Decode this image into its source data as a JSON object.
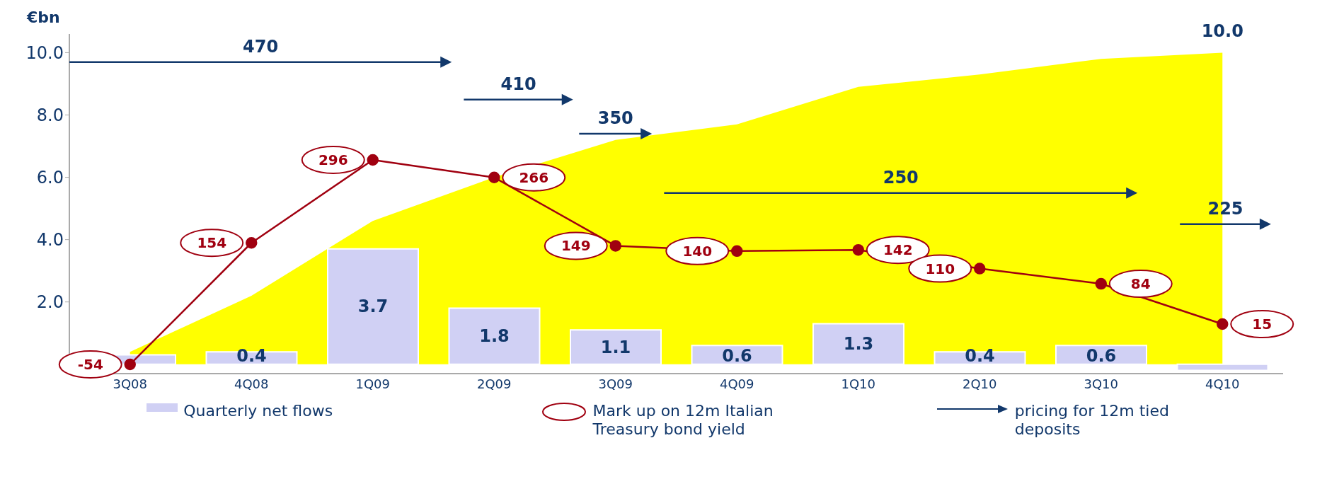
{
  "chart_data": {
    "type": "bar",
    "ylabel": "€bn",
    "categories": [
      "3Q08",
      "4Q08",
      "1Q09",
      "2Q09",
      "3Q09",
      "4Q09",
      "1Q10",
      "2Q10",
      "3Q10",
      "4Q10"
    ],
    "series": [
      {
        "type": "area",
        "color": "#ffff00",
        "values": [
          0.4,
          2.2,
          4.6,
          6.0,
          7.2,
          7.7,
          8.9,
          9.3,
          9.8,
          10.0
        ],
        "value_labels": [
          null,
          null,
          null,
          null,
          null,
          null,
          null,
          null,
          null,
          "10.0"
        ]
      },
      {
        "name": "Quarterly net flows",
        "color": "#d0d0f4",
        "values": [
          0.3,
          0.4,
          3.7,
          1.8,
          1.1,
          0.6,
          1.3,
          0.4,
          0.6,
          -0.2
        ],
        "value_labels": [
          null,
          "0.4",
          "3.7",
          "1.8",
          "1.1",
          "0.6",
          "1.3",
          "0.4",
          "0.6",
          null
        ]
      },
      {
        "type": "line",
        "name": "Mark up on 12m Italian Treasury bond yield",
        "color": "#a00010",
        "axis": "y2",
        "marker": "circle",
        "data_labels": true,
        "values": [
          -54,
          154,
          296,
          266,
          149,
          140,
          142,
          110,
          84,
          15
        ]
      }
    ],
    "ylim": [
      -0.3,
      10.6
    ],
    "yticks": [
      {
        "value": 2,
        "label": "2.0"
      },
      {
        "value": 4,
        "label": "4.0"
      },
      {
        "value": 6,
        "label": "6.0"
      },
      {
        "value": 8,
        "label": "8.0"
      },
      {
        "value": 10,
        "label": "10.0"
      }
    ],
    "legend": "bottom",
    "annotations": [
      "470",
      "410",
      "350",
      "250",
      "225",
      "pricing for 12m tied deposits"
    ]
  }
}
